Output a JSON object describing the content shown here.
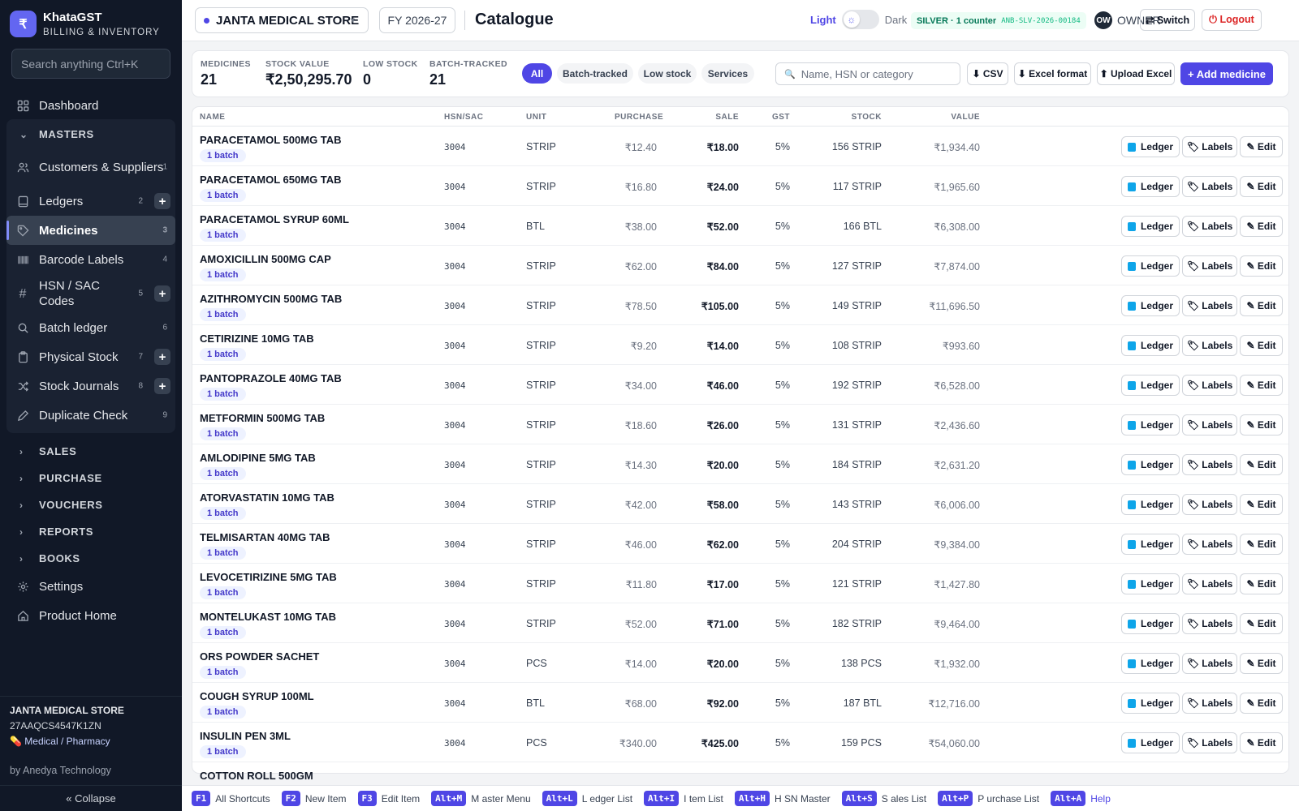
{
  "app": {
    "name": "KhataGST",
    "subtitle": "BILLING & INVENTORY",
    "logo_glyph": "₹"
  },
  "sidebar": {
    "search_placeholder": "Search anything  Ctrl+K",
    "dashboard": "Dashboard",
    "masters_group": "MASTERS",
    "masters": [
      {
        "label": "Customers & Suppliers",
        "num": "1",
        "icon": "users-icon"
      },
      {
        "label": "Ledgers",
        "num": "2",
        "icon": "book-icon",
        "plus": "+"
      },
      {
        "label": "Medicines",
        "num": "3",
        "icon": "tag-icon",
        "active": true
      },
      {
        "label": "Barcode Labels",
        "num": "4",
        "icon": "barcode-icon"
      },
      {
        "label": "HSN / SAC Codes",
        "num": "5",
        "icon": "hash-icon",
        "plus": "+"
      },
      {
        "label": "Batch ledger",
        "num": "6",
        "icon": "search-icon"
      },
      {
        "label": "Physical Stock",
        "num": "7",
        "icon": "clipboard-icon",
        "plus": "+"
      },
      {
        "label": "Stock Journals",
        "num": "8",
        "icon": "shuffle-icon",
        "plus": "+"
      },
      {
        "label": "Duplicate Check",
        "num": "9",
        "icon": "pen-icon"
      }
    ],
    "groups": [
      "SALES",
      "PURCHASE",
      "VOUCHERS",
      "REPORTS",
      "BOOKS"
    ],
    "settings": "Settings",
    "product_home": "Product Home",
    "footer_store": "JANTA MEDICAL STORE",
    "footer_gstin": "27AAQCS4547K1ZN",
    "footer_type": "💊 Medical / Pharmacy",
    "by": "by Anedya Technology",
    "collapse": "« Collapse"
  },
  "topbar": {
    "store": "JANTA MEDICAL STORE",
    "fy": "FY 2026-27",
    "title": "Catalogue",
    "theme_light": "Light",
    "theme_dark": "Dark",
    "plan": "SILVER · 1 counter",
    "plan_code": "ANB-SLV-2026-00184",
    "avatar": "OW",
    "role": "OWNER",
    "switch": "⇄ Switch",
    "logout": "⏻ Logout"
  },
  "stats": {
    "medicines_label": "MEDICINES",
    "medicines": "21",
    "stock_value_label": "STOCK VALUE",
    "stock_value": "₹2,50,295.70",
    "low_stock_label": "LOW STOCK",
    "low_stock": "0",
    "batch_label": "BATCH-TRACKED",
    "batch": "21"
  },
  "filters": {
    "all": "All",
    "batch": "Batch-tracked",
    "low": "Low stock",
    "services": "Services"
  },
  "search": {
    "placeholder": "Name, HSN or category"
  },
  "actions": {
    "csv": "⬇ CSV",
    "excel": "⬇ Excel format",
    "upload": "⬆ Upload Excel",
    "add": "+ Add medicine"
  },
  "table": {
    "headers": {
      "name": "NAME",
      "hsn": "HSN/SAC",
      "unit": "UNIT",
      "purchase": "PURCHASE",
      "sale": "SALE",
      "gst": "GST",
      "stock": "STOCK",
      "value": "VALUE"
    },
    "btn_ledger": "Ledger",
    "btn_labels": "🏷 Labels",
    "btn_edit": "✎ Edit",
    "rows": [
      {
        "name": "PARACETAMOL 500MG TAB",
        "batch": "1 batch",
        "hsn": "3004",
        "unit": "STRIP",
        "purchase": "₹12.40",
        "sale": "₹18.00",
        "gst": "5%",
        "stock": "156 STRIP",
        "value": "₹1,934.40"
      },
      {
        "name": "PARACETAMOL 650MG TAB",
        "batch": "1 batch",
        "hsn": "3004",
        "unit": "STRIP",
        "purchase": "₹16.80",
        "sale": "₹24.00",
        "gst": "5%",
        "stock": "117 STRIP",
        "value": "₹1,965.60"
      },
      {
        "name": "PARACETAMOL SYRUP 60ML",
        "batch": "1 batch",
        "hsn": "3004",
        "unit": "BTL",
        "purchase": "₹38.00",
        "sale": "₹52.00",
        "gst": "5%",
        "stock": "166 BTL",
        "value": "₹6,308.00"
      },
      {
        "name": "AMOXICILLIN 500MG CAP",
        "batch": "1 batch",
        "hsn": "3004",
        "unit": "STRIP",
        "purchase": "₹62.00",
        "sale": "₹84.00",
        "gst": "5%",
        "stock": "127 STRIP",
        "value": "₹7,874.00"
      },
      {
        "name": "AZITHROMYCIN 500MG TAB",
        "batch": "1 batch",
        "hsn": "3004",
        "unit": "STRIP",
        "purchase": "₹78.50",
        "sale": "₹105.00",
        "gst": "5%",
        "stock": "149 STRIP",
        "value": "₹11,696.50"
      },
      {
        "name": "CETIRIZINE 10MG TAB",
        "batch": "1 batch",
        "hsn": "3004",
        "unit": "STRIP",
        "purchase": "₹9.20",
        "sale": "₹14.00",
        "gst": "5%",
        "stock": "108 STRIP",
        "value": "₹993.60"
      },
      {
        "name": "PANTOPRAZOLE 40MG TAB",
        "batch": "1 batch",
        "hsn": "3004",
        "unit": "STRIP",
        "purchase": "₹34.00",
        "sale": "₹46.00",
        "gst": "5%",
        "stock": "192 STRIP",
        "value": "₹6,528.00"
      },
      {
        "name": "METFORMIN 500MG TAB",
        "batch": "1 batch",
        "hsn": "3004",
        "unit": "STRIP",
        "purchase": "₹18.60",
        "sale": "₹26.00",
        "gst": "5%",
        "stock": "131 STRIP",
        "value": "₹2,436.60"
      },
      {
        "name": "AMLODIPINE 5MG TAB",
        "batch": "1 batch",
        "hsn": "3004",
        "unit": "STRIP",
        "purchase": "₹14.30",
        "sale": "₹20.00",
        "gst": "5%",
        "stock": "184 STRIP",
        "value": "₹2,631.20"
      },
      {
        "name": "ATORVASTATIN 10MG TAB",
        "batch": "1 batch",
        "hsn": "3004",
        "unit": "STRIP",
        "purchase": "₹42.00",
        "sale": "₹58.00",
        "gst": "5%",
        "stock": "143 STRIP",
        "value": "₹6,006.00"
      },
      {
        "name": "TELMISARTAN 40MG TAB",
        "batch": "1 batch",
        "hsn": "3004",
        "unit": "STRIP",
        "purchase": "₹46.00",
        "sale": "₹62.00",
        "gst": "5%",
        "stock": "204 STRIP",
        "value": "₹9,384.00"
      },
      {
        "name": "LEVOCETIRIZINE 5MG TAB",
        "batch": "1 batch",
        "hsn": "3004",
        "unit": "STRIP",
        "purchase": "₹11.80",
        "sale": "₹17.00",
        "gst": "5%",
        "stock": "121 STRIP",
        "value": "₹1,427.80"
      },
      {
        "name": "MONTELUKAST 10MG TAB",
        "batch": "1 batch",
        "hsn": "3004",
        "unit": "STRIP",
        "purchase": "₹52.00",
        "sale": "₹71.00",
        "gst": "5%",
        "stock": "182 STRIP",
        "value": "₹9,464.00"
      },
      {
        "name": "ORS POWDER SACHET",
        "batch": "1 batch",
        "hsn": "3004",
        "unit": "PCS",
        "purchase": "₹14.00",
        "sale": "₹20.00",
        "gst": "5%",
        "stock": "138 PCS",
        "value": "₹1,932.00"
      },
      {
        "name": "COUGH SYRUP 100ML",
        "batch": "1 batch",
        "hsn": "3004",
        "unit": "BTL",
        "purchase": "₹68.00",
        "sale": "₹92.00",
        "gst": "5%",
        "stock": "187 BTL",
        "value": "₹12,716.00"
      },
      {
        "name": "INSULIN PEN 3ML",
        "batch": "1 batch",
        "hsn": "3004",
        "unit": "PCS",
        "purchase": "₹340.00",
        "sale": "₹425.00",
        "gst": "5%",
        "stock": "159 PCS",
        "value": "₹54,060.00"
      },
      {
        "name": "COTTON ROLL 500GM",
        "batch": "",
        "hsn": "",
        "unit": "",
        "purchase": "",
        "sale": "",
        "gst": "",
        "stock": "",
        "value": ""
      }
    ]
  },
  "shortcuts": [
    {
      "key": "F1",
      "label": "All Shortcuts"
    },
    {
      "key": "F2",
      "label": "New Item"
    },
    {
      "key": "F3",
      "label": "Edit Item"
    },
    {
      "key": "Alt+M",
      "label": "M aster Menu"
    },
    {
      "key": "Alt+L",
      "label": "L edger List"
    },
    {
      "key": "Alt+I",
      "label": "I tem List"
    },
    {
      "key": "Alt+H",
      "label": "H SN Master"
    },
    {
      "key": "Alt+S",
      "label": "S ales List"
    },
    {
      "key": "Alt+P",
      "label": "P urchase List"
    },
    {
      "key": "Alt+A",
      "label": "Help"
    }
  ]
}
